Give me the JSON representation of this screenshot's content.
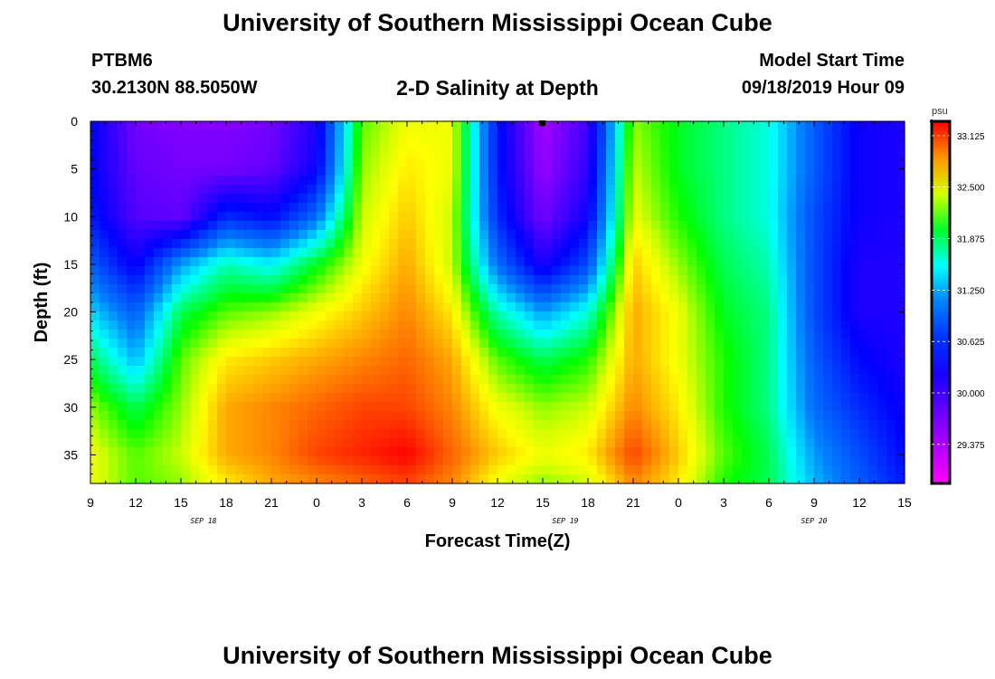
{
  "header": {
    "title": "University of Southern Mississippi Ocean Cube",
    "station_id": "PTBM6",
    "station_coords": "30.2130N 88.5050W",
    "plot_title": "2-D Salinity at Depth",
    "model_start_label": "Model Start Time",
    "model_start_value": "09/18/2019 Hour 09"
  },
  "footer": {
    "title": "University of Southern Mississippi Ocean Cube"
  },
  "chart_data": {
    "type": "heatmap",
    "title": "2-D Salinity at Depth",
    "xlabel": "Forecast Time(Z)",
    "ylabel": "Depth (ft)",
    "x_tick_labels": [
      "9",
      "12",
      "15",
      "18",
      "21",
      "0",
      "3",
      "6",
      "9",
      "12",
      "15",
      "18",
      "21",
      "0",
      "3",
      "6",
      "9",
      "12",
      "15"
    ],
    "x_date_labels": [
      "SEP 18",
      "SEP 19",
      "SEP 20"
    ],
    "x_range_hours": [
      0,
      54
    ],
    "y_tick_labels": [
      "0",
      "5",
      "10",
      "15",
      "20",
      "25",
      "30",
      "35"
    ],
    "ylim": [
      0,
      38
    ],
    "colorbar": {
      "unit": "psu",
      "range": [
        28.9,
        33.3
      ],
      "tick_labels": [
        "33.125",
        "32.500",
        "31.875",
        "31.250",
        "30.625",
        "30.000",
        "29.375"
      ],
      "tick_values": [
        33.125,
        32.5,
        31.875,
        31.25,
        30.625,
        30.0,
        29.375
      ]
    },
    "depths_ft": [
      0,
      5,
      10,
      15,
      20,
      25,
      30,
      35,
      38
    ],
    "times_hours": [
      0,
      3,
      6,
      9,
      12,
      15,
      18,
      21,
      24,
      27,
      30,
      33,
      36,
      39,
      42,
      45,
      48,
      51,
      54
    ],
    "salinity_psu": [
      [
        30.4,
        29.7,
        29.6,
        29.6,
        29.7,
        30.2,
        32.2,
        32.5,
        32.5,
        30.5,
        29.4,
        30.0,
        32.3,
        32.0,
        31.8,
        31.6,
        30.9,
        30.3,
        30.2
      ],
      [
        30.4,
        29.8,
        29.7,
        29.7,
        29.8,
        30.3,
        32.3,
        32.6,
        32.5,
        30.5,
        29.5,
        30.1,
        32.4,
        32.0,
        31.8,
        31.6,
        30.9,
        30.3,
        30.2
      ],
      [
        30.5,
        29.9,
        29.8,
        30.6,
        30.4,
        31.0,
        32.4,
        32.7,
        32.4,
        30.6,
        29.7,
        30.3,
        32.5,
        32.1,
        31.8,
        31.6,
        30.8,
        30.3,
        30.2
      ],
      [
        30.9,
        30.3,
        31.2,
        31.7,
        31.5,
        32.0,
        32.5,
        32.8,
        32.4,
        31.0,
        30.2,
        30.8,
        32.7,
        32.3,
        31.9,
        31.7,
        30.8,
        30.2,
        30.2
      ],
      [
        31.4,
        30.9,
        31.9,
        32.2,
        32.3,
        32.5,
        32.7,
        32.9,
        32.6,
        31.7,
        31.2,
        31.6,
        32.8,
        32.5,
        32.0,
        31.8,
        30.8,
        30.2,
        30.2
      ],
      [
        31.9,
        31.3,
        32.2,
        32.6,
        32.7,
        32.8,
        32.9,
        33.0,
        32.8,
        32.2,
        31.9,
        32.1,
        32.8,
        32.5,
        32.1,
        31.8,
        30.9,
        30.4,
        30.2
      ],
      [
        32.3,
        31.9,
        32.3,
        32.8,
        32.9,
        33.0,
        33.1,
        33.1,
        32.9,
        32.5,
        32.3,
        32.4,
        32.9,
        32.6,
        32.1,
        31.8,
        31.0,
        30.6,
        30.3
      ],
      [
        32.5,
        32.2,
        32.4,
        32.8,
        32.9,
        33.1,
        33.2,
        33.3,
        33.0,
        32.7,
        32.5,
        32.6,
        33.1,
        32.7,
        32.2,
        31.9,
        31.2,
        30.8,
        30.4
      ],
      [
        32.5,
        32.2,
        32.3,
        32.6,
        32.8,
        32.9,
        33.0,
        33.1,
        32.9,
        32.5,
        32.3,
        32.4,
        32.9,
        32.6,
        32.1,
        31.9,
        31.3,
        30.9,
        30.5
      ]
    ]
  }
}
